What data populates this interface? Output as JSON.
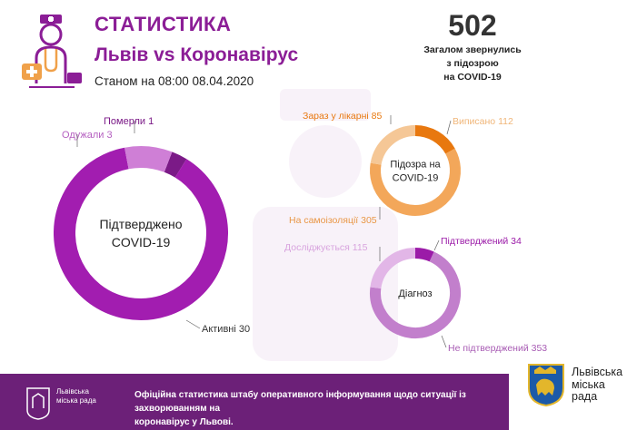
{
  "header": {
    "title": "СТАТИСТИКА",
    "subtitle": "Львів vs Коронавірус",
    "as_of": "Станом на 08:00 08.04.2020"
  },
  "total": {
    "number": "502",
    "line1": "Загалом звернулись",
    "line2": "з підозрою",
    "line3": "на COVID-19"
  },
  "colors": {
    "brand_purple": "#8b1d96",
    "footer_purple": "#6c2078",
    "orange": "#ef7d1b",
    "orange_light": "#f4c38e",
    "purple_light": "#d9a6df"
  },
  "chart_data": [
    {
      "type": "pie",
      "variant": "donut",
      "center_label": [
        "Підтверджено",
        "COVID-19"
      ],
      "slices": [
        {
          "label": "Активні 30",
          "value": 30,
          "color": "#a21db0"
        },
        {
          "label": "Одужали 3",
          "value": 3,
          "color": "#cf7fd6"
        },
        {
          "label": "Померли 1",
          "value": 1,
          "color": "#7b1a87"
        }
      ]
    },
    {
      "type": "pie",
      "variant": "donut",
      "center_label": [
        "Підозра на",
        "COVID-19"
      ],
      "slices": [
        {
          "label": "Зараз у лікарні 85",
          "value": 85,
          "color": "#e8780f"
        },
        {
          "label": "Виписано 112",
          "value": 112,
          "color": "#f5c796"
        },
        {
          "label": "На самоізоляції 305",
          "value": 305,
          "color": "#f3a75a"
        }
      ]
    },
    {
      "type": "pie",
      "variant": "donut",
      "center_label": [
        "Діагноз"
      ],
      "slices": [
        {
          "label": "Підтверджений 34",
          "value": 34,
          "color": "#9b1ba8"
        },
        {
          "label": "Не підтверджений 353",
          "value": 353,
          "color": "#c27fcc"
        },
        {
          "label": "Досліджується 115",
          "value": 115,
          "color": "#e2b6e7"
        }
      ]
    }
  ],
  "footer": {
    "logo_text": "Львівська міська рада",
    "line1": "Офіційна статистика штабу оперативного інформування щодо ситуації із захворюванням на",
    "line2": "коронавірус у Львові.",
    "city_name_l1": "Львівська",
    "city_name_l2": "міська",
    "city_name_l3": "рада"
  }
}
